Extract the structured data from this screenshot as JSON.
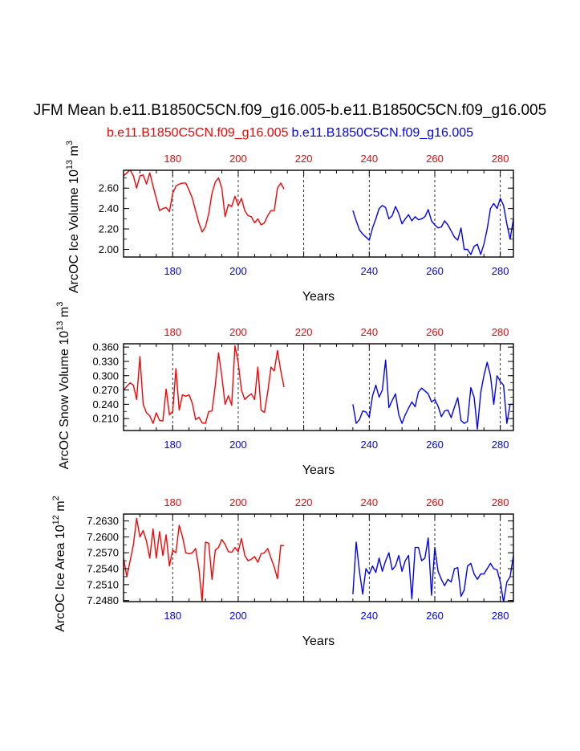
{
  "figure": {
    "title": "JFM Mean b.e11.B1850C5CN.f09_g16.005-b.e11.B1850C5CN.f09_g16.005",
    "legend": [
      {
        "label": "b.e11.B1850C5CN.f09_g16.005",
        "color": "#ff0000"
      },
      {
        "label": "b.e11.B1850C5CN.f09_g16.005",
        "color": "#0000ff"
      }
    ]
  },
  "chart_data": [
    {
      "type": "line",
      "title": "",
      "xlabel": "Years",
      "ylabel": "ArcOC Ice Volume 10",
      "ylabel_exp": "13",
      "ylabel_unit": " m",
      "ylabel_unit_exp": "3",
      "xlim": [
        165,
        284
      ],
      "ylim": [
        1.925,
        2.775
      ],
      "yticks": [
        2.0,
        2.2,
        2.4,
        2.6
      ],
      "ytick_labels": [
        "2.00",
        "2.20",
        "2.40",
        "2.60"
      ],
      "xticks": [
        180,
        200,
        220,
        240,
        260,
        280
      ],
      "xtick_labels_bottom": [
        "180",
        "200",
        "240",
        "260",
        "280"
      ],
      "xtick_labels_top": [
        "180",
        "200",
        "220",
        "240",
        "260",
        "280"
      ],
      "gridlines_x": [
        180,
        200,
        220,
        240,
        260,
        280
      ],
      "series": [
        {
          "name": "b.e11.B1850C5CN.f09_g16.005",
          "color": "#ff0000",
          "x": [
            165,
            166,
            167,
            168,
            169,
            170,
            171,
            172,
            173,
            174,
            175,
            176,
            177,
            178,
            179,
            180,
            181,
            182,
            183,
            184,
            185,
            186,
            187,
            188,
            189,
            190,
            191,
            192,
            193,
            194,
            195,
            196,
            197,
            198,
            199,
            200,
            201,
            202,
            203,
            204,
            205,
            206,
            207,
            208,
            209,
            210,
            211,
            212,
            213,
            214
          ],
          "y": [
            2.72,
            2.75,
            2.78,
            2.72,
            2.6,
            2.72,
            2.73,
            2.64,
            2.75,
            2.62,
            2.5,
            2.38,
            2.4,
            2.41,
            2.37,
            2.55,
            2.62,
            2.64,
            2.65,
            2.65,
            2.58,
            2.5,
            2.38,
            2.26,
            2.17,
            2.22,
            2.35,
            2.55,
            2.66,
            2.7,
            2.6,
            2.32,
            2.44,
            2.42,
            2.52,
            2.43,
            2.5,
            2.38,
            2.33,
            2.32,
            2.26,
            2.3,
            2.24,
            2.26,
            2.33,
            2.38,
            2.38,
            2.6,
            2.65,
            2.59
          ]
        },
        {
          "name": "b.e11.B1850C5CN.f09_g16.005",
          "color": "#0000ff",
          "x": [
            235,
            236,
            237,
            238,
            239,
            240,
            241,
            242,
            243,
            244,
            245,
            246,
            247,
            248,
            249,
            250,
            251,
            252,
            253,
            254,
            255,
            256,
            257,
            258,
            259,
            260,
            261,
            262,
            263,
            264,
            265,
            266,
            267,
            268,
            269,
            270,
            271,
            272,
            273,
            274,
            275,
            276,
            277,
            278,
            279,
            280,
            281,
            282,
            283,
            284
          ],
          "y": [
            2.38,
            2.28,
            2.19,
            2.15,
            2.12,
            2.09,
            2.21,
            2.3,
            2.4,
            2.43,
            2.41,
            2.3,
            2.33,
            2.42,
            2.35,
            2.25,
            2.3,
            2.34,
            2.28,
            2.32,
            2.29,
            2.3,
            2.32,
            2.39,
            2.28,
            2.24,
            2.21,
            2.22,
            2.28,
            2.24,
            2.18,
            2.12,
            2.09,
            2.21,
            2.0,
            2.0,
            1.95,
            2.03,
            2.05,
            1.95,
            2.05,
            2.2,
            2.4,
            2.45,
            2.4,
            2.5,
            2.43,
            2.25,
            2.1,
            2.3
          ]
        }
      ]
    },
    {
      "type": "line",
      "title": "",
      "xlabel": "Years",
      "ylabel": "ArcOC Snow Volume 10",
      "ylabel_exp": "13",
      "ylabel_unit": " m",
      "ylabel_unit_exp": "3",
      "xlim": [
        165,
        284
      ],
      "ylim": [
        0.185,
        0.367
      ],
      "yticks": [
        0.21,
        0.24,
        0.27,
        0.3,
        0.33,
        0.36
      ],
      "ytick_labels": [
        "0.210",
        "0.240",
        "0.270",
        "0.300",
        "0.330",
        "0.360"
      ],
      "xticks": [
        180,
        200,
        220,
        240,
        260,
        280
      ],
      "xtick_labels_bottom": [
        "180",
        "200",
        "240",
        "260",
        "280"
      ],
      "xtick_labels_top": [
        "180",
        "200",
        "220",
        "240",
        "260",
        "280"
      ],
      "gridlines_x": [
        180,
        200,
        220,
        240,
        260,
        280
      ],
      "series": [
        {
          "name": "b.e11.B1850C5CN.f09_g16.005",
          "color": "#ff0000",
          "x": [
            165,
            166,
            167,
            168,
            169,
            170,
            171,
            172,
            173,
            174,
            175,
            176,
            177,
            178,
            179,
            180,
            181,
            182,
            183,
            184,
            185,
            186,
            187,
            188,
            189,
            190,
            191,
            192,
            193,
            194,
            195,
            196,
            197,
            198,
            199,
            200,
            201,
            202,
            203,
            204,
            205,
            206,
            207,
            208,
            209,
            210,
            211,
            212,
            213,
            214
          ],
          "y": [
            0.27,
            0.278,
            0.285,
            0.28,
            0.25,
            0.34,
            0.24,
            0.222,
            0.216,
            0.2,
            0.222,
            0.206,
            0.205,
            0.272,
            0.218,
            0.225,
            0.315,
            0.228,
            0.26,
            0.257,
            0.26,
            0.242,
            0.208,
            0.213,
            0.201,
            0.2,
            0.225,
            0.226,
            0.28,
            0.348,
            0.3,
            0.24,
            0.258,
            0.238,
            0.363,
            0.328,
            0.27,
            0.25,
            0.257,
            0.262,
            0.25,
            0.318,
            0.228,
            0.223,
            0.265,
            0.318,
            0.31,
            0.353,
            0.31,
            0.276
          ]
        },
        {
          "name": "b.e11.B1850C5CN.f09_g16.005",
          "color": "#0000ff",
          "x": [
            235,
            236,
            237,
            238,
            239,
            240,
            241,
            242,
            243,
            244,
            245,
            246,
            247,
            248,
            249,
            250,
            251,
            252,
            253,
            254,
            255,
            256,
            257,
            258,
            259,
            260,
            261,
            262,
            263,
            264,
            265,
            266,
            267,
            268,
            269,
            270,
            271,
            272,
            273,
            274,
            275,
            276,
            277,
            278,
            279,
            280,
            281,
            282,
            283,
            284
          ],
          "y": [
            0.24,
            0.2,
            0.208,
            0.226,
            0.224,
            0.213,
            0.258,
            0.28,
            0.255,
            0.27,
            0.333,
            0.233,
            0.248,
            0.262,
            0.218,
            0.2,
            0.218,
            0.232,
            0.245,
            0.235,
            0.266,
            0.274,
            0.268,
            0.262,
            0.245,
            0.25,
            0.236,
            0.214,
            0.226,
            0.228,
            0.212,
            0.234,
            0.254,
            0.206,
            0.2,
            0.204,
            0.275,
            0.255,
            0.188,
            0.264,
            0.3,
            0.328,
            0.3,
            0.24,
            0.3,
            0.288,
            0.28,
            0.2,
            0.24,
            0.24
          ]
        }
      ]
    },
    {
      "type": "line",
      "title": "",
      "xlabel": "Years",
      "ylabel": "ArcOC Ice Area 10",
      "ylabel_exp": "12",
      "ylabel_unit": " m",
      "ylabel_unit_exp": "2",
      "xlim": [
        165,
        284
      ],
      "ylim": [
        7.2478,
        7.2643
      ],
      "yticks": [
        7.248,
        7.251,
        7.254,
        7.257,
        7.26,
        7.263
      ],
      "ytick_labels": [
        "7.2480",
        "7.2510",
        "7.2540",
        "7.2570",
        "7.2600",
        "7.2630"
      ],
      "xticks": [
        180,
        200,
        220,
        240,
        260,
        280
      ],
      "xtick_labels_bottom": [
        "180",
        "200",
        "240",
        "260",
        "280"
      ],
      "xtick_labels_top": [
        "180",
        "200",
        "220",
        "240",
        "260",
        "280"
      ],
      "gridlines_x": [
        180,
        200,
        220,
        240,
        260,
        280
      ],
      "series": [
        {
          "name": "b.e11.B1850C5CN.f09_g16.005",
          "color": "#ff0000",
          "x": [
            165,
            166,
            167,
            168,
            169,
            170,
            171,
            172,
            173,
            174,
            175,
            176,
            177,
            178,
            179,
            180,
            181,
            182,
            183,
            184,
            185,
            186,
            187,
            188,
            189,
            190,
            191,
            192,
            193,
            194,
            195,
            196,
            197,
            198,
            199,
            200,
            201,
            202,
            203,
            204,
            205,
            206,
            207,
            208,
            209,
            210,
            211,
            212,
            213,
            214
          ],
          "y": [
            7.256,
            7.2525,
            7.2555,
            7.2585,
            7.2635,
            7.26,
            7.2612,
            7.2592,
            7.256,
            7.2615,
            7.256,
            7.261,
            7.2565,
            7.2604,
            7.2545,
            7.2575,
            7.257,
            7.2622,
            7.26,
            7.257,
            7.2568,
            7.257,
            7.2578,
            7.254,
            7.2478,
            7.259,
            7.2588,
            7.252,
            7.2575,
            7.258,
            7.2595,
            7.2586,
            7.2572,
            7.2571,
            7.258,
            7.2572,
            7.2597,
            7.2565,
            7.2555,
            7.2558,
            7.2563,
            7.2552,
            7.2568,
            7.257,
            7.2578,
            7.256,
            7.2543,
            7.2521,
            7.2584,
            7.2583
          ]
        },
        {
          "name": "b.e11.B1850C5CN.f09_g16.005",
          "color": "#0000ff",
          "x": [
            235,
            236,
            237,
            238,
            239,
            240,
            241,
            242,
            243,
            244,
            245,
            246,
            247,
            248,
            249,
            250,
            251,
            252,
            253,
            254,
            255,
            256,
            257,
            258,
            259,
            260,
            261,
            262,
            263,
            264,
            265,
            266,
            267,
            268,
            269,
            270,
            271,
            272,
            273,
            274,
            275,
            276,
            277,
            278,
            279,
            280,
            281,
            282,
            283,
            284
          ],
          "y": [
            7.2492,
            7.259,
            7.2535,
            7.2492,
            7.254,
            7.253,
            7.2545,
            7.2533,
            7.256,
            7.2535,
            7.2555,
            7.257,
            7.2538,
            7.2545,
            7.2565,
            7.2535,
            7.2555,
            7.2565,
            7.2483,
            7.258,
            7.258,
            7.2555,
            7.256,
            7.2598,
            7.249,
            7.258,
            7.2535,
            7.252,
            7.2508,
            7.252,
            7.2515,
            7.254,
            7.2542,
            7.2488,
            7.25,
            7.2545,
            7.255,
            7.253,
            7.252,
            7.253,
            7.253,
            7.254,
            7.255,
            7.254,
            7.2538,
            7.2515,
            7.2477,
            7.2515,
            7.2525,
            7.2565
          ]
        }
      ]
    }
  ]
}
